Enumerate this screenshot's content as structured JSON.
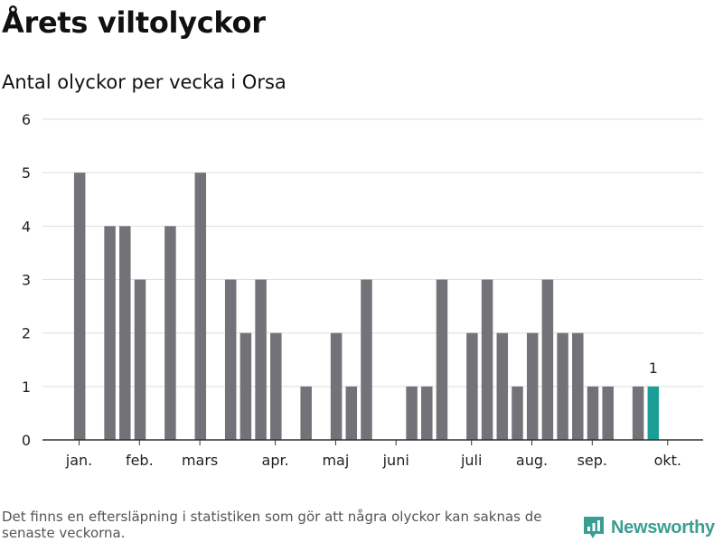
{
  "title": "Årets viltolyckor",
  "subtitle": "Antal olyckor per vecka i Orsa",
  "footnote": "Det finns en eftersläpning i statistiken som gör att några olyckor kan saknas de senaste veckorna.",
  "brand": {
    "name": "Newsworthy",
    "color": "#3a9e92"
  },
  "colors": {
    "bar": "#737278",
    "highlight": "#1a9e95",
    "grid": "#dddddd",
    "axis": "#333333"
  },
  "chart_data": {
    "type": "bar",
    "title": "Antal olyckor per vecka i Orsa",
    "xlabel": "",
    "ylabel": "",
    "ylim": [
      0,
      6
    ],
    "yticks": [
      0,
      1,
      2,
      3,
      4,
      5,
      6
    ],
    "grid": true,
    "weeks": [
      1,
      2,
      3,
      4,
      5,
      6,
      7,
      8,
      9,
      10,
      11,
      12,
      13,
      14,
      15,
      16,
      17,
      18,
      19,
      20,
      21,
      22,
      23,
      24,
      25,
      26,
      27,
      28,
      29,
      30,
      31,
      32,
      33,
      34,
      35,
      36,
      37,
      38,
      39,
      40
    ],
    "values": [
      0,
      5,
      0,
      4,
      4,
      3,
      0,
      4,
      0,
      5,
      0,
      3,
      2,
      3,
      2,
      0,
      1,
      0,
      2,
      1,
      3,
      0,
      0,
      1,
      1,
      3,
      0,
      2,
      3,
      2,
      1,
      2,
      3,
      2,
      2,
      1,
      1,
      0,
      1,
      1
    ],
    "highlight_index": 39,
    "highlight_label": "1",
    "month_labels": [
      {
        "label": "jan.",
        "week": 1
      },
      {
        "label": "feb.",
        "week": 5
      },
      {
        "label": "mars",
        "week": 9
      },
      {
        "label": "apr.",
        "week": 14
      },
      {
        "label": "maj",
        "week": 18
      },
      {
        "label": "juni",
        "week": 22
      },
      {
        "label": "juli",
        "week": 27
      },
      {
        "label": "aug.",
        "week": 31
      },
      {
        "label": "sep.",
        "week": 35
      },
      {
        "label": "okt.",
        "week": 40
      }
    ]
  }
}
